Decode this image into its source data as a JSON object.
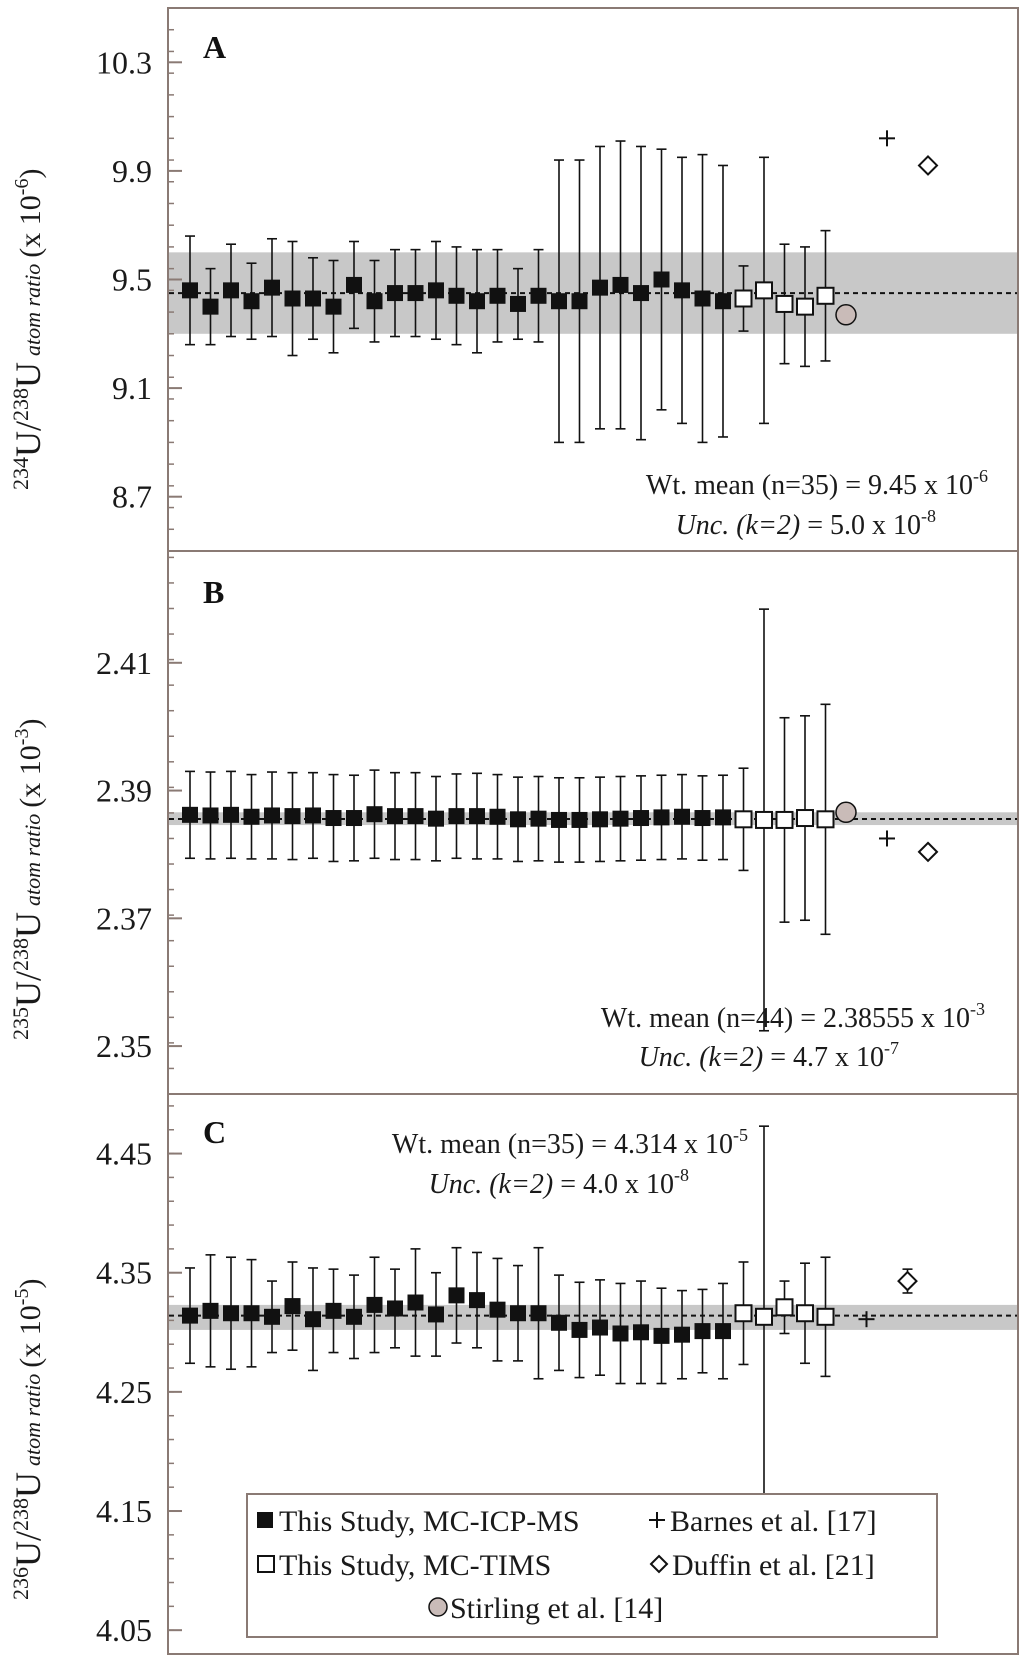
{
  "chart_data": [
    {
      "type": "scatter",
      "panel": "A",
      "ylabel": {
        "iso_num": "234",
        "num": "U",
        "slash": "/",
        "iso_den": "238",
        "den": "U",
        "ratio": "atom ratio",
        "scale": "(x 10",
        "exp": "-6",
        "close": ")"
      },
      "ylim": [
        8.5,
        10.5
      ],
      "yticks": [
        8.7,
        9.1,
        9.5,
        9.9,
        10.3
      ],
      "ytick_labels": [
        "8.7",
        "9.1",
        "9.5",
        "9.9",
        "10.3"
      ],
      "band": [
        9.3,
        9.6
      ],
      "mean": 9.45,
      "annotation": {
        "line1": "Wt. mean (n=35) = 9.45 x 10",
        "line1_exp": "-6",
        "line2_pre": "Unc. (",
        "line2_k": "k",
        "line2_mid": "=2)",
        "line2_val": " = 5.0 x 10",
        "line2_exp": "-8"
      },
      "series": [
        {
          "name": "This Study, MC-ICP-MS",
          "marker": "filled-square",
          "x": [
            1,
            2,
            3,
            4,
            5,
            6,
            7,
            8,
            9,
            10,
            11,
            12,
            13,
            14,
            15,
            16,
            17,
            18,
            19,
            20,
            21,
            22,
            23,
            24,
            25,
            26,
            27
          ],
          "y": [
            9.46,
            9.4,
            9.46,
            9.42,
            9.47,
            9.43,
            9.43,
            9.4,
            9.48,
            9.42,
            9.45,
            9.45,
            9.46,
            9.44,
            9.42,
            9.44,
            9.41,
            9.44,
            9.42,
            9.42,
            9.47,
            9.48,
            9.45,
            9.5,
            9.46,
            9.43,
            9.42
          ],
          "err": [
            0.2,
            0.14,
            0.17,
            0.14,
            0.18,
            0.21,
            0.15,
            0.17,
            0.16,
            0.15,
            0.16,
            0.16,
            0.18,
            0.18,
            0.19,
            0.17,
            0.13,
            0.17,
            0.52,
            0.52,
            0.52,
            0.53,
            0.54,
            0.48,
            0.49,
            0.53,
            0.5
          ]
        },
        {
          "name": "This Study, MC-TIMS",
          "marker": "open-square",
          "x": [
            28,
            29,
            30,
            31,
            32
          ],
          "y": [
            9.43,
            9.46,
            9.41,
            9.4,
            9.44
          ],
          "err": [
            0.12,
            0.49,
            0.22,
            0.22,
            0.24
          ]
        },
        {
          "name": "Stirling et al. [14]",
          "marker": "circle",
          "x": [
            33
          ],
          "y": [
            9.37
          ]
        },
        {
          "name": "Barnes et al. [17]",
          "marker": "plus",
          "x": [
            35
          ],
          "y": [
            10.02
          ]
        },
        {
          "name": "Duffin et al. [21]",
          "marker": "diamond",
          "x": [
            37
          ],
          "y": [
            9.92
          ]
        }
      ]
    },
    {
      "type": "scatter",
      "panel": "B",
      "ylabel": {
        "iso_num": "235",
        "num": "U",
        "slash": "/",
        "iso_den": "238",
        "den": "U",
        "ratio": "atom ratio",
        "scale": "(x 10",
        "exp": "-3",
        "close": ")"
      },
      "ylim": [
        2.3425,
        2.4275
      ],
      "yticks": [
        2.35,
        2.37,
        2.39,
        2.41
      ],
      "ytick_labels": [
        "2.35",
        "2.37",
        "2.39",
        "2.41"
      ],
      "band": [
        2.3846,
        2.3866
      ],
      "mean": 2.38555,
      "annotation": {
        "line1": "Wt. mean (n=44) = 2.38555 x 10",
        "line1_exp": "-3",
        "line2_pre": "Unc. (",
        "line2_k": "k",
        "line2_mid": "=2)",
        "line2_val": " = 4.7 x 10",
        "line2_exp": "-7"
      },
      "series": [
        {
          "name": "This Study, MC-ICP-MS",
          "marker": "filled-square",
          "x": [
            1,
            2,
            3,
            4,
            5,
            6,
            7,
            8,
            9,
            10,
            11,
            12,
            13,
            14,
            15,
            16,
            17,
            18,
            19,
            20,
            21,
            22,
            23,
            24,
            25,
            26,
            27
          ],
          "y": [
            2.3862,
            2.3861,
            2.3862,
            2.3859,
            2.3861,
            2.386,
            2.3861,
            2.3857,
            2.3857,
            2.3863,
            2.386,
            2.386,
            2.3856,
            2.386,
            2.386,
            2.3859,
            2.3855,
            2.3856,
            2.3854,
            2.3854,
            2.3855,
            2.3856,
            2.3857,
            2.3858,
            2.3859,
            2.3857,
            2.3858
          ],
          "err": [
            0.0068,
            0.0068,
            0.0068,
            0.0066,
            0.0068,
            0.0068,
            0.0067,
            0.0068,
            0.0067,
            0.0069,
            0.0068,
            0.0068,
            0.0066,
            0.0066,
            0.0067,
            0.0066,
            0.0066,
            0.0066,
            0.0066,
            0.0066,
            0.0066,
            0.0066,
            0.0066,
            0.0066,
            0.0066,
            0.0066,
            0.0066
          ]
        },
        {
          "name": "This Study, MC-TIMS",
          "marker": "open-square",
          "x": [
            28,
            29,
            30,
            31,
            32
          ],
          "y": [
            2.3855,
            2.3854,
            2.3854,
            2.3857,
            2.3855
          ],
          "err": [
            0.008,
            0.033,
            0.016,
            0.016,
            0.018
          ]
        },
        {
          "name": "Stirling et al. [14]",
          "marker": "circle",
          "x": [
            33
          ],
          "y": [
            2.3866
          ]
        },
        {
          "name": "Barnes et al. [17]",
          "marker": "plus",
          "x": [
            35
          ],
          "y": [
            2.3825
          ]
        },
        {
          "name": "Duffin et al. [21]",
          "marker": "diamond",
          "x": [
            37
          ],
          "y": [
            2.3804
          ],
          "err": [
            0.0007
          ]
        }
      ]
    },
    {
      "type": "scatter",
      "panel": "C",
      "ylabel": {
        "iso_num": "236",
        "num": "U",
        "slash": "/",
        "iso_den": "238",
        "den": "U",
        "ratio": "atom ratio",
        "scale": "(x 10",
        "exp": "-5",
        "close": ")"
      },
      "ylim": [
        4.03,
        4.5
      ],
      "yticks": [
        4.05,
        4.15,
        4.25,
        4.35,
        4.45
      ],
      "ytick_labels": [
        "4.05",
        "4.15",
        "4.25",
        "4.35",
        "4.45"
      ],
      "band": [
        4.302,
        4.323
      ],
      "mean": 4.314,
      "annotation": {
        "line1": "Wt. mean (n=35) = 4.314 x 10",
        "line1_exp": "-5",
        "line2_pre": "Unc. (",
        "line2_k": "k",
        "line2_mid": "=2)",
        "line2_val": " = 4.0 x 10",
        "line2_exp": "-8"
      },
      "series": [
        {
          "name": "This Study, MC-ICP-MS",
          "marker": "filled-square",
          "x": [
            1,
            2,
            3,
            4,
            5,
            6,
            7,
            8,
            9,
            10,
            11,
            12,
            13,
            14,
            15,
            16,
            17,
            18,
            19,
            20,
            21,
            22,
            23,
            24,
            25,
            26,
            27
          ],
          "y": [
            4.314,
            4.318,
            4.316,
            4.316,
            4.313,
            4.322,
            4.311,
            4.318,
            4.313,
            4.323,
            4.32,
            4.325,
            4.315,
            4.331,
            4.327,
            4.319,
            4.316,
            4.316,
            4.308,
            4.302,
            4.304,
            4.299,
            4.3,
            4.297,
            4.298,
            4.301,
            4.301
          ],
          "err": [
            0.04,
            0.047,
            0.047,
            0.045,
            0.03,
            0.037,
            0.043,
            0.035,
            0.035,
            0.04,
            0.033,
            0.045,
            0.035,
            0.04,
            0.04,
            0.043,
            0.04,
            0.055,
            0.04,
            0.04,
            0.04,
            0.042,
            0.043,
            0.04,
            0.037,
            0.035,
            0.04
          ]
        },
        {
          "name": "This Study, MC-TIMS",
          "marker": "open-square",
          "x": [
            28,
            29,
            30,
            31,
            32
          ],
          "y": [
            4.316,
            4.313,
            4.321,
            4.316,
            4.313
          ],
          "err": [
            0.043,
            0.16,
            0.022,
            0.042,
            0.05
          ]
        },
        {
          "name": "Barnes et al. [17]",
          "marker": "plus",
          "x": [
            34
          ],
          "y": [
            4.311
          ]
        },
        {
          "name": "Duffin et al. [21]",
          "marker": "diamond",
          "x": [
            36
          ],
          "y": [
            4.343
          ],
          "err": [
            0.01
          ]
        }
      ]
    }
  ],
  "legend": {
    "items": [
      {
        "marker": "filled-square",
        "label": "This Study, MC-ICP-MS"
      },
      {
        "marker": "plus",
        "label": "Barnes et al. [17]"
      },
      {
        "marker": "open-square",
        "label": "This Study, MC-TIMS"
      },
      {
        "marker": "diamond",
        "label": "Duffin et al. [21]"
      },
      {
        "marker": "circle",
        "label": "Stirling et al. [14]"
      }
    ]
  },
  "colors": {
    "band": "#c8c8c8",
    "frame": "#8a7a74",
    "marker": "#111111",
    "circle_fill": "#c9bbb8"
  }
}
